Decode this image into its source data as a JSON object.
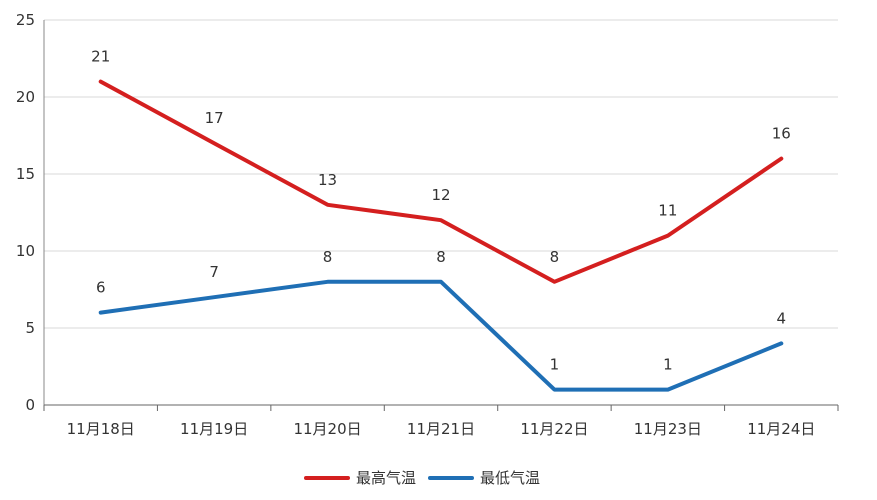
{
  "chart_data": {
    "type": "line",
    "categories": [
      "11月18日",
      "11月19日",
      "11月20日",
      "11月21日",
      "11月22日",
      "11月23日",
      "11月24日"
    ],
    "series": [
      {
        "name": "最高气温",
        "color": "#d41f1f",
        "values": [
          21,
          17,
          13,
          12,
          8,
          11,
          16
        ]
      },
      {
        "name": "最低气温",
        "color": "#1f6fb5",
        "values": [
          6,
          7,
          8,
          8,
          1,
          1,
          4
        ]
      }
    ],
    "ylim": [
      0,
      25
    ],
    "yticks": [
      "0",
      "5",
      "10",
      "15",
      "20",
      "25"
    ],
    "grid": true,
    "legend": "bottom-center",
    "title": "",
    "xlabel": "",
    "ylabel": ""
  }
}
